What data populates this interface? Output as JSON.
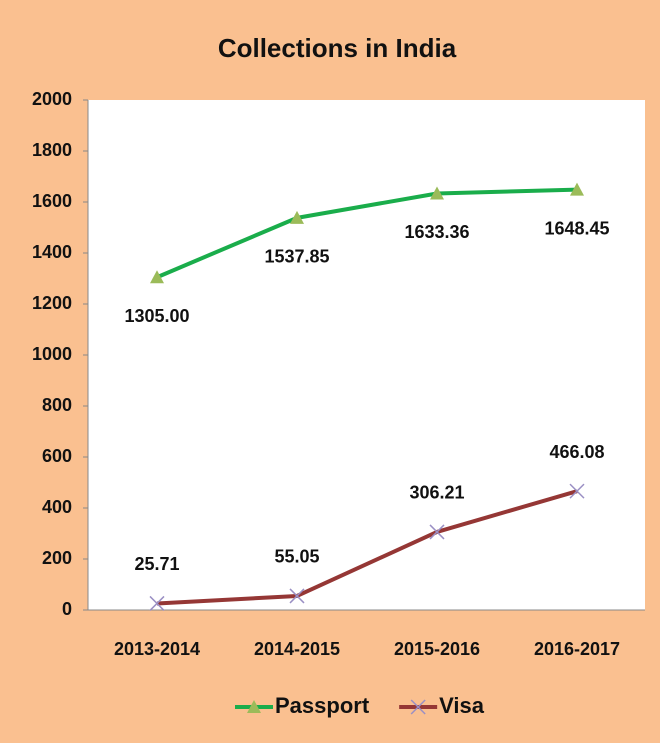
{
  "chart_data": {
    "type": "line",
    "title": "Collections in India",
    "categories": [
      "2013-2014",
      "2014-2015",
      "2015-2016",
      "2016-2017"
    ],
    "series": [
      {
        "name": "Passport",
        "color": "#1aad4b",
        "marker_color": "#9bbb59",
        "values": [
          1305,
          1537.85,
          1633.36,
          1648.45
        ],
        "value_labels": [
          "1305.00",
          "1537.85",
          "1633.36",
          "1648.45"
        ]
      },
      {
        "name": "Visa",
        "color": "#953735",
        "marker_color": "#9a8fc4",
        "values": [
          25.71,
          55.05,
          306.21,
          466.08
        ]
      }
    ],
    "ylim": [
      0,
      2000
    ],
    "yticks": [
      0,
      200,
      400,
      600,
      800,
      1000,
      1200,
      1400,
      1600,
      1800,
      2000
    ],
    "grid": false,
    "legend": "bottom"
  }
}
